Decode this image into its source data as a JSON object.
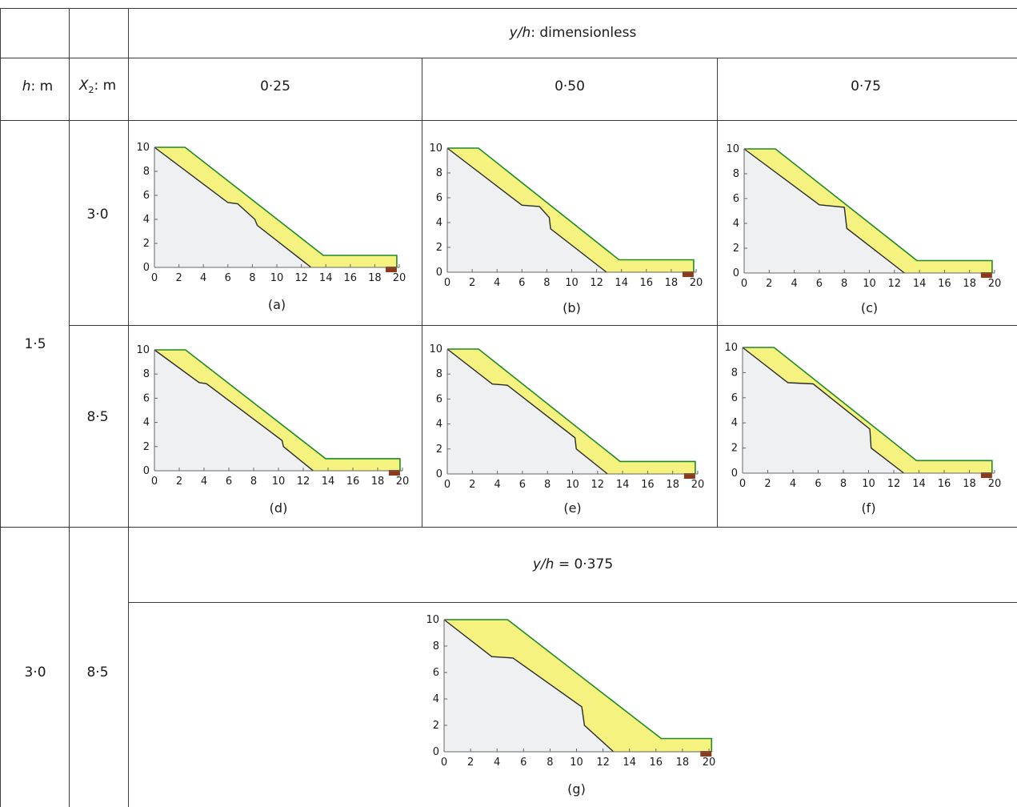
{
  "header": {
    "ratio_var": "y/h",
    "ratio_suffix": ": dimensionless",
    "h_var": "h",
    "h_unit": ": m",
    "x2_var": "X",
    "x2_sub": "2",
    "x2_unit": ": m",
    "col_values": [
      "0·25",
      "0·50",
      "0·75"
    ]
  },
  "rows": [
    {
      "h": "1·5",
      "x2": "3·0"
    },
    {
      "h": "",
      "x2": "8·5"
    },
    {
      "h": "3·0",
      "x2": "8·5"
    }
  ],
  "special": {
    "label_var": "y/h",
    "label_value": " = 0·375"
  },
  "chart_data": [
    {
      "type": "area",
      "caption": "(a)",
      "xlim": [
        0,
        20
      ],
      "ylim": [
        0,
        10
      ],
      "x_ticks": [
        0,
        2,
        4,
        6,
        8,
        10,
        12,
        14,
        16,
        18,
        20
      ],
      "y_ticks": [
        0,
        2,
        4,
        6,
        8,
        10
      ],
      "original_surface": [
        [
          0,
          10
        ],
        [
          6,
          5.4
        ],
        [
          6.8,
          5.3
        ],
        [
          8.2,
          4.0
        ],
        [
          8.4,
          3.5
        ],
        [
          12.8,
          0
        ],
        [
          20,
          0
        ]
      ],
      "final_surface": [
        [
          0,
          10
        ],
        [
          2.5,
          10
        ],
        [
          13.8,
          1.0
        ],
        [
          19.8,
          1.0
        ],
        [
          19.8,
          0
        ]
      ],
      "colors": {
        "fill": "#f5f27f",
        "outline": "#1e8a28",
        "slope": "#eef0f2",
        "toe": "#8b3a1a"
      }
    },
    {
      "type": "area",
      "caption": "(b)",
      "xlim": [
        0,
        20
      ],
      "ylim": [
        0,
        10
      ],
      "x_ticks": [
        0,
        2,
        4,
        6,
        8,
        10,
        12,
        14,
        16,
        18,
        20
      ],
      "y_ticks": [
        0,
        2,
        4,
        6,
        8,
        10
      ],
      "original_surface": [
        [
          0,
          10
        ],
        [
          6,
          5.4
        ],
        [
          7.4,
          5.3
        ],
        [
          8.2,
          4.4
        ],
        [
          8.3,
          3.5
        ],
        [
          12.8,
          0
        ],
        [
          20,
          0
        ]
      ],
      "final_surface": [
        [
          0,
          10
        ],
        [
          2.5,
          10
        ],
        [
          13.8,
          1.0
        ],
        [
          19.8,
          1.0
        ],
        [
          19.8,
          0
        ]
      ],
      "colors": {
        "fill": "#f5f27f",
        "outline": "#1e8a28",
        "slope": "#eef0f2",
        "toe": "#8b3a1a"
      }
    },
    {
      "type": "area",
      "caption": "(c)",
      "xlim": [
        0,
        20
      ],
      "ylim": [
        0,
        10
      ],
      "x_ticks": [
        0,
        2,
        4,
        6,
        8,
        10,
        12,
        14,
        16,
        18,
        20
      ],
      "y_ticks": [
        0,
        2,
        4,
        6,
        8,
        10
      ],
      "original_surface": [
        [
          0,
          10
        ],
        [
          6,
          5.5
        ],
        [
          8.0,
          5.3
        ],
        [
          8.2,
          3.6
        ],
        [
          12.8,
          0
        ],
        [
          20,
          0
        ]
      ],
      "final_surface": [
        [
          0,
          10
        ],
        [
          2.5,
          10
        ],
        [
          13.8,
          1.0
        ],
        [
          19.8,
          1.0
        ],
        [
          19.8,
          0
        ]
      ],
      "colors": {
        "fill": "#f5f27f",
        "outline": "#1e8a28",
        "slope": "#eef0f2",
        "toe": "#8b3a1a"
      }
    },
    {
      "type": "area",
      "caption": "(d)",
      "xlim": [
        0,
        20
      ],
      "ylim": [
        0,
        10
      ],
      "x_ticks": [
        0,
        2,
        4,
        6,
        8,
        10,
        12,
        14,
        16,
        18,
        20
      ],
      "y_ticks": [
        0,
        2,
        4,
        6,
        8,
        10
      ],
      "original_surface": [
        [
          0,
          10
        ],
        [
          3.6,
          7.3
        ],
        [
          4.2,
          7.2
        ],
        [
          10.3,
          2.5
        ],
        [
          10.4,
          2.0
        ],
        [
          12.8,
          0
        ],
        [
          20,
          0
        ]
      ],
      "final_surface": [
        [
          0,
          10
        ],
        [
          2.5,
          10
        ],
        [
          13.8,
          1.0
        ],
        [
          19.8,
          1.0
        ],
        [
          19.8,
          0
        ]
      ],
      "colors": {
        "fill": "#f5f27f",
        "outline": "#1e8a28",
        "slope": "#eef0f2",
        "toe": "#8b3a1a"
      }
    },
    {
      "type": "area",
      "caption": "(e)",
      "xlim": [
        0,
        20
      ],
      "ylim": [
        0,
        10
      ],
      "x_ticks": [
        0,
        2,
        4,
        6,
        8,
        10,
        12,
        14,
        16,
        18,
        20
      ],
      "y_ticks": [
        0,
        2,
        4,
        6,
        8,
        10
      ],
      "original_surface": [
        [
          0,
          10
        ],
        [
          3.6,
          7.2
        ],
        [
          4.8,
          7.1
        ],
        [
          10.2,
          2.9
        ],
        [
          10.3,
          2.0
        ],
        [
          12.8,
          0
        ],
        [
          20,
          0
        ]
      ],
      "final_surface": [
        [
          0,
          10
        ],
        [
          2.5,
          10
        ],
        [
          13.8,
          1.0
        ],
        [
          19.8,
          1.0
        ],
        [
          19.8,
          0
        ]
      ],
      "colors": {
        "fill": "#f5f27f",
        "outline": "#1e8a28",
        "slope": "#eef0f2",
        "toe": "#8b3a1a"
      }
    },
    {
      "type": "area",
      "caption": "(f)",
      "xlim": [
        0,
        20
      ],
      "ylim": [
        0,
        10
      ],
      "x_ticks": [
        0,
        2,
        4,
        6,
        8,
        10,
        12,
        14,
        16,
        18,
        20
      ],
      "y_ticks": [
        0,
        2,
        4,
        6,
        8,
        10
      ],
      "original_surface": [
        [
          0,
          10
        ],
        [
          3.6,
          7.2
        ],
        [
          5.6,
          7.1
        ],
        [
          10.1,
          3.5
        ],
        [
          10.2,
          2.0
        ],
        [
          12.8,
          0
        ],
        [
          20,
          0
        ]
      ],
      "final_surface": [
        [
          0,
          10
        ],
        [
          2.5,
          10
        ],
        [
          13.8,
          1.0
        ],
        [
          19.8,
          1.0
        ],
        [
          19.8,
          0
        ]
      ],
      "colors": {
        "fill": "#f5f27f",
        "outline": "#1e8a28",
        "slope": "#eef0f2",
        "toe": "#8b3a1a"
      }
    },
    {
      "type": "area",
      "caption": "(g)",
      "xlim": [
        0,
        20
      ],
      "ylim": [
        0,
        10
      ],
      "x_ticks": [
        0,
        2,
        4,
        6,
        8,
        10,
        12,
        14,
        16,
        18,
        20
      ],
      "y_ticks": [
        0,
        2,
        4,
        6,
        8,
        10
      ],
      "original_surface": [
        [
          0,
          10
        ],
        [
          3.6,
          7.2
        ],
        [
          5.2,
          7.1
        ],
        [
          10.4,
          3.4
        ],
        [
          10.6,
          2.0
        ],
        [
          12.8,
          0
        ],
        [
          20,
          0
        ]
      ],
      "final_surface": [
        [
          0,
          10
        ],
        [
          4.8,
          10
        ],
        [
          16.4,
          1.0
        ],
        [
          20.2,
          1.0
        ],
        [
          20.2,
          0
        ]
      ],
      "colors": {
        "fill": "#f5f27f",
        "outline": "#1e8a28",
        "slope": "#eef0f2",
        "toe": "#8b3a1a"
      }
    }
  ]
}
